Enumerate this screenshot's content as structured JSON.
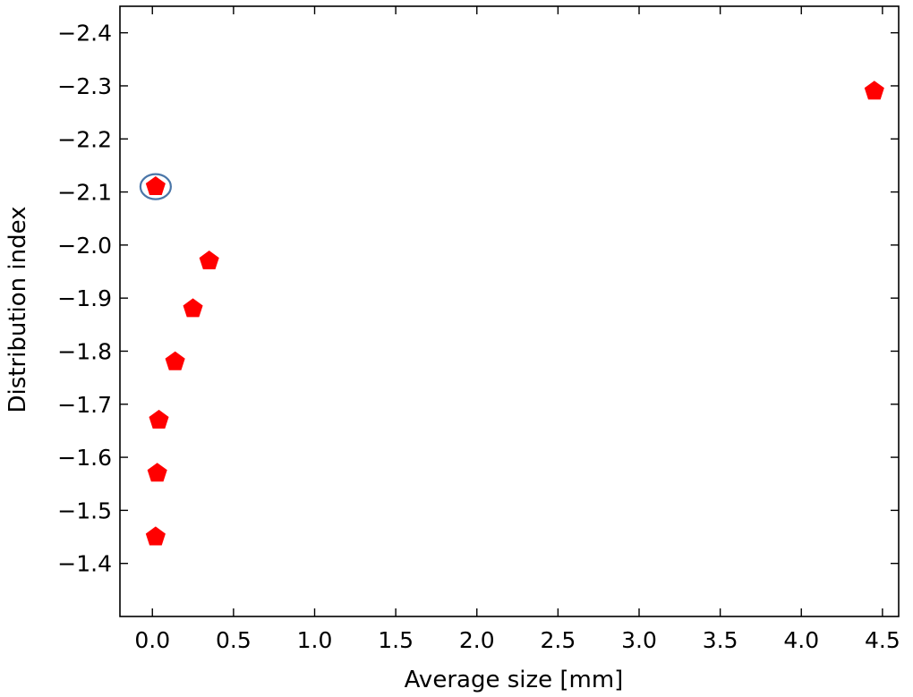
{
  "chart_data": {
    "type": "scatter",
    "title": "",
    "xlabel": "Average size [mm]",
    "ylabel": "Distribution index",
    "xlim": [
      -0.2,
      4.6
    ],
    "ylim": [
      -1.3,
      -2.45
    ],
    "y_axis_inverted": true,
    "grid": false,
    "marker": "pentagon",
    "marker_color": "#ff0000",
    "x_ticks": [
      {
        "value": 0.0,
        "label": "0.0"
      },
      {
        "value": 0.5,
        "label": "0.5"
      },
      {
        "value": 1.0,
        "label": "1.0"
      },
      {
        "value": 1.5,
        "label": "1.5"
      },
      {
        "value": 2.0,
        "label": "2.0"
      },
      {
        "value": 2.5,
        "label": "2.5"
      },
      {
        "value": 3.0,
        "label": "3.0"
      },
      {
        "value": 3.5,
        "label": "3.5"
      },
      {
        "value": 4.0,
        "label": "4.0"
      },
      {
        "value": 4.5,
        "label": "4.5"
      }
    ],
    "y_ticks": [
      {
        "value": -2.4,
        "label": "−2.4"
      },
      {
        "value": -2.3,
        "label": "−2.3"
      },
      {
        "value": -2.2,
        "label": "−2.2"
      },
      {
        "value": -2.1,
        "label": "−2.1"
      },
      {
        "value": -2.0,
        "label": "−2.0"
      },
      {
        "value": -1.9,
        "label": "−1.9"
      },
      {
        "value": -1.8,
        "label": "−1.8"
      },
      {
        "value": -1.7,
        "label": "−1.7"
      },
      {
        "value": -1.6,
        "label": "−1.6"
      },
      {
        "value": -1.5,
        "label": "−1.5"
      },
      {
        "value": -1.4,
        "label": "−1.4"
      }
    ],
    "points": [
      {
        "x": 0.02,
        "y": -1.45
      },
      {
        "x": 0.03,
        "y": -1.57
      },
      {
        "x": 0.04,
        "y": -1.67
      },
      {
        "x": 0.14,
        "y": -1.78
      },
      {
        "x": 0.25,
        "y": -1.88
      },
      {
        "x": 0.35,
        "y": -1.97
      },
      {
        "x": 0.02,
        "y": -2.11,
        "highlighted": true
      },
      {
        "x": 4.45,
        "y": -2.29
      }
    ],
    "highlight_color": "#4a76a8"
  }
}
